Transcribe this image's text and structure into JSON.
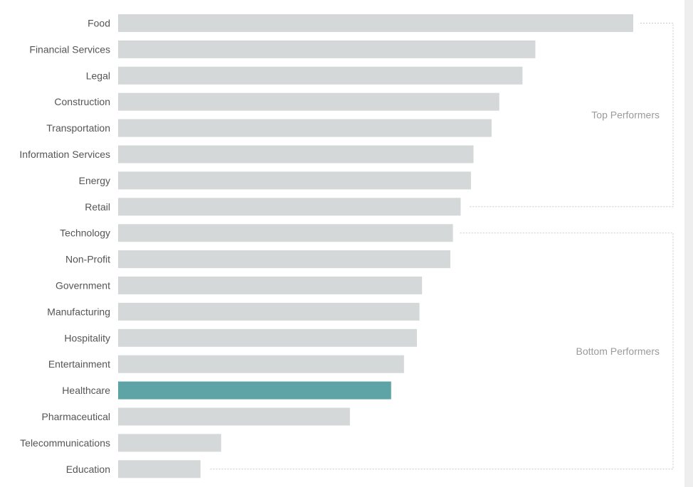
{
  "chart_data": {
    "type": "bar",
    "orientation": "horizontal",
    "categories": [
      "Food",
      "Financial Services",
      "Legal",
      "Construction",
      "Transportation",
      "Information Services",
      "Energy",
      "Retail",
      "Technology",
      "Non-Profit",
      "Government",
      "Manufacturing",
      "Hospitality",
      "Entertainment",
      "Healthcare",
      "Pharmaceutical",
      "Telecommunications",
      "Education"
    ],
    "values": [
      100,
      81,
      78.5,
      74,
      72.5,
      69,
      68.5,
      66.5,
      65,
      64.5,
      59,
      58.5,
      58,
      55.5,
      53,
      45,
      20,
      16
    ],
    "highlight_category": "Healthcare",
    "colors": {
      "bar": "#d5d8d8",
      "highlight": "#5ea3a6",
      "label": "#555555",
      "group_label": "#9a9a9a",
      "bracket": "#c8c8c8"
    },
    "groups": [
      {
        "label": "Top Performers",
        "first": "Food",
        "last": "Retail"
      },
      {
        "label": "Bottom Performers",
        "first": "Technology",
        "last": "Education"
      }
    ],
    "xlim": [
      0,
      100
    ],
    "title": "",
    "xlabel": "",
    "ylabel": "",
    "grid": false,
    "legend": "none"
  }
}
